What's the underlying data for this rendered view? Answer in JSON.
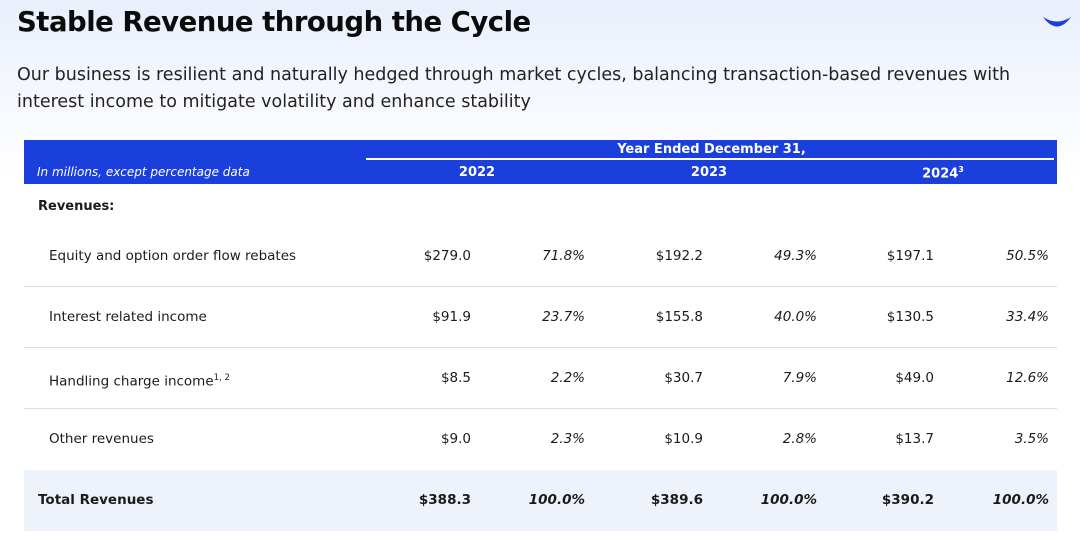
{
  "header": {
    "title": "Stable Revenue through the Cycle",
    "subtitle": "Our business is resilient and naturally hedged through market cycles, balancing transaction-based revenues with interest income to mitigate volatility and enhance stability",
    "logo_icon": "smile-logo-icon",
    "accent_color": "#1b3fdc"
  },
  "table": {
    "period_label": "Year Ended December 31,",
    "unit_label": "In millions, except percentage data",
    "years": [
      "2022",
      "2023",
      "2024"
    ],
    "year_footnote_2024": "3",
    "section_label": "Revenues:",
    "rows": [
      {
        "label": "Equity and option order flow rebates",
        "sup": "",
        "v2022": "$279.0",
        "p2022": "71.8%",
        "v2023": "$192.2",
        "p2023": "49.3%",
        "v2024": "$197.1",
        "p2024": "50.5%"
      },
      {
        "label": "Interest related income",
        "sup": "",
        "v2022": "$91.9",
        "p2022": "23.7%",
        "v2023": "$155.8",
        "p2023": "40.0%",
        "v2024": "$130.5",
        "p2024": "33.4%"
      },
      {
        "label": "Handling charge income",
        "sup": "1, 2",
        "v2022": "$8.5",
        "p2022": "2.2%",
        "v2023": "$30.7",
        "p2023": "7.9%",
        "v2024": "$49.0",
        "p2024": "12.6%"
      },
      {
        "label": "Other revenues",
        "sup": "",
        "v2022": "$9.0",
        "p2022": "2.3%",
        "v2023": "$10.9",
        "p2023": "2.8%",
        "v2024": "$13.7",
        "p2024": "3.5%"
      }
    ],
    "total": {
      "label": "Total Revenues",
      "v2022": "$388.3",
      "p2022": "100.0%",
      "v2023": "$389.6",
      "p2023": "100.0%",
      "v2024": "$390.2",
      "p2024": "100.0%"
    }
  }
}
